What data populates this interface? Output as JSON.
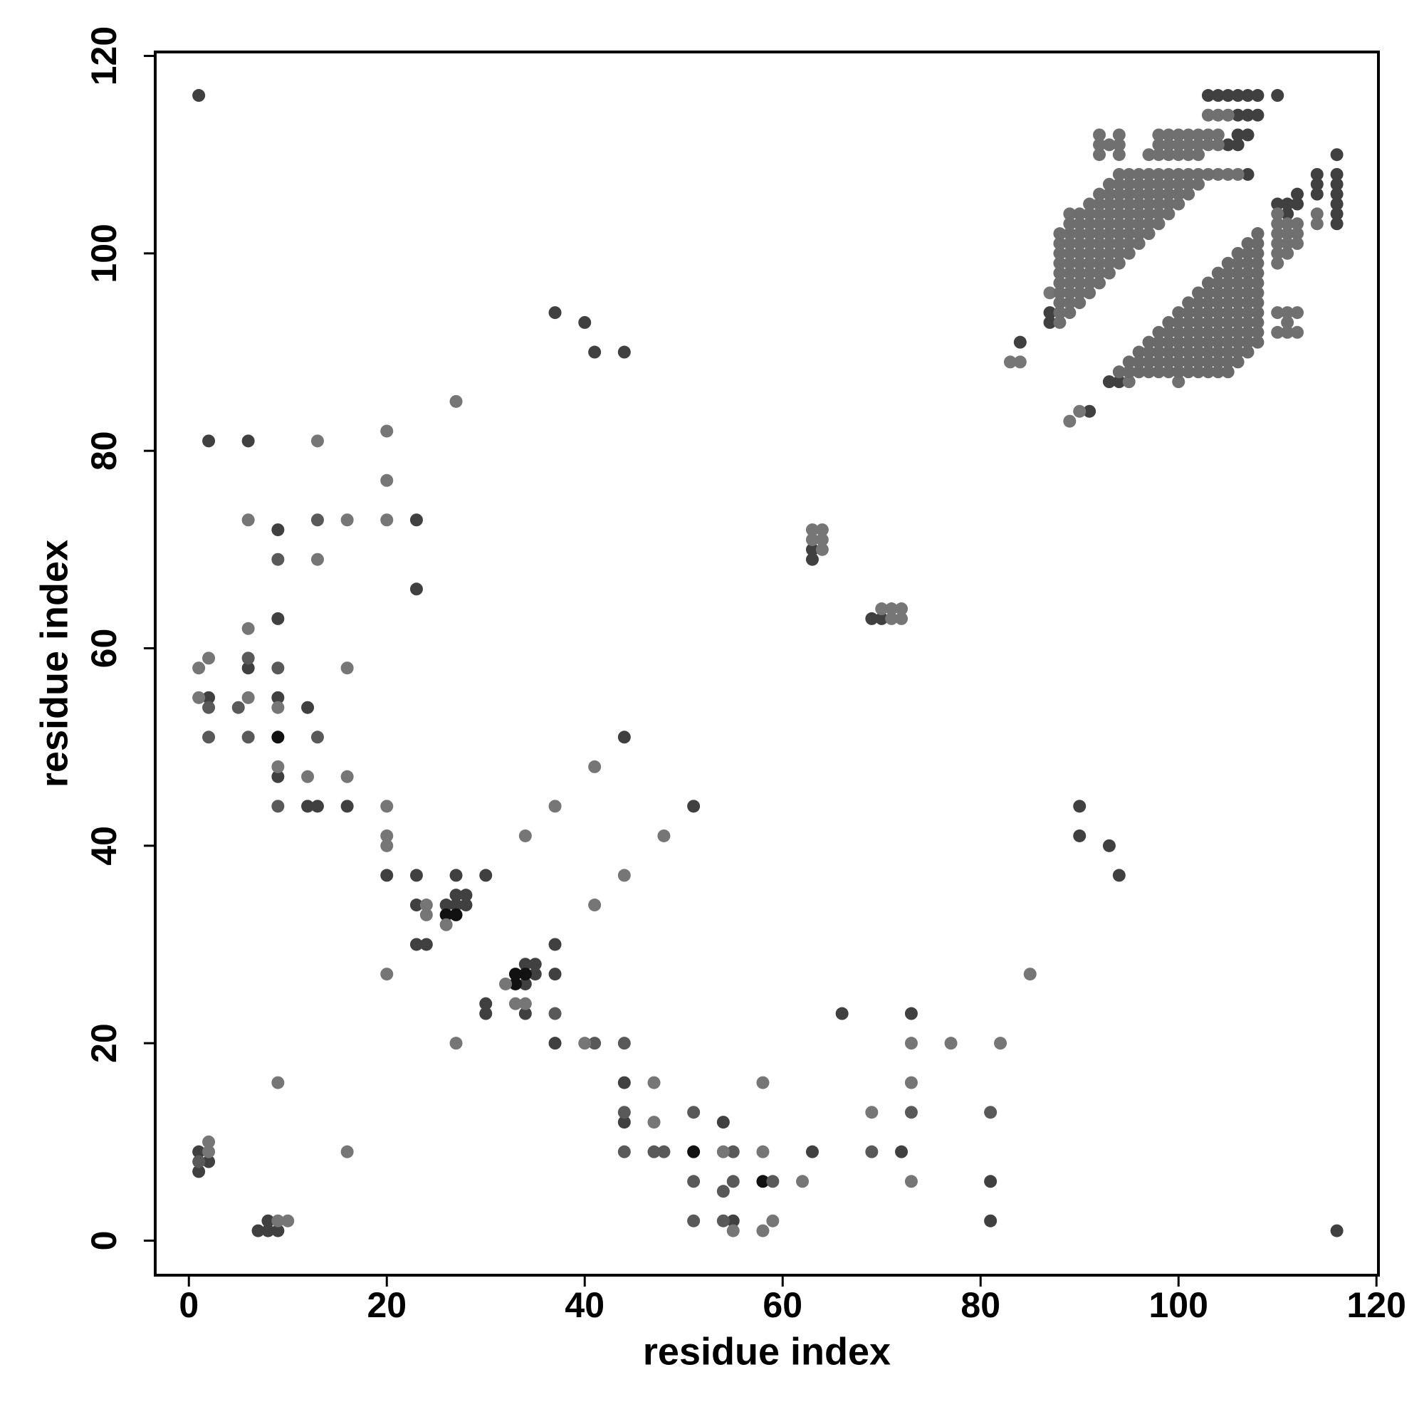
{
  "chart_data": {
    "type": "scatter",
    "xlabel": "residue index",
    "ylabel": "residue index",
    "xlim": [
      -3.4,
      120.2
    ],
    "ylim": [
      -3.5,
      120.4
    ],
    "xticks": [
      0,
      20,
      40,
      60,
      80,
      100,
      120
    ],
    "yticks": [
      0,
      20,
      40,
      60,
      80,
      100,
      120
    ],
    "grid": false,
    "series": [
      {
        "color": "#404040",
        "x": [
          1,
          2,
          6,
          23,
          9,
          23,
          9,
          6,
          2,
          9,
          12,
          9,
          12,
          13,
          16,
          20,
          23,
          23,
          26,
          27,
          27,
          28,
          28,
          27,
          30,
          23,
          24,
          30,
          30,
          34,
          34,
          35,
          35,
          34,
          37,
          37,
          37,
          37,
          40,
          41,
          44,
          44,
          51,
          44,
          44,
          54,
          63,
          55,
          66,
          72,
          73,
          81,
          81,
          1,
          1,
          2,
          7,
          8,
          8,
          9,
          116,
          63,
          63,
          69,
          70,
          90,
          90,
          93,
          94,
          84,
          91,
          87,
          87,
          93,
          94,
          110,
          103,
          104,
          105,
          106,
          107,
          108,
          106,
          107,
          108,
          105,
          106,
          106,
          107,
          107,
          114,
          114,
          114,
          116,
          116,
          116,
          116,
          116,
          116,
          116,
          112,
          111,
          112,
          110,
          111,
          108
        ],
        "values": [
          116,
          81,
          81,
          73,
          72,
          66,
          63,
          58,
          55,
          55,
          54,
          47,
          44,
          44,
          44,
          37,
          37,
          34,
          34,
          34,
          35,
          35,
          34,
          37,
          37,
          30,
          30,
          24,
          23,
          26,
          28,
          28,
          27,
          23,
          30,
          27,
          20,
          94,
          93,
          90,
          90,
          51,
          44,
          16,
          12,
          12,
          9,
          2,
          23,
          9,
          23,
          6,
          2,
          9,
          7,
          8,
          1,
          1,
          2,
          1,
          1,
          70,
          69,
          63,
          63,
          44,
          41,
          40,
          37,
          91,
          84,
          93,
          94,
          87,
          87,
          116,
          116,
          116,
          116,
          116,
          116,
          116,
          114,
          114,
          114,
          111,
          111,
          112,
          112,
          108,
          108,
          107,
          106,
          110,
          108,
          107,
          106,
          105,
          104,
          103,
          106,
          105,
          105,
          105,
          104,
          102
        ]
      },
      {
        "color": "#111111",
        "x": [
          9,
          26,
          27,
          33,
          33,
          34,
          51,
          58
        ],
        "values": [
          51,
          33,
          33,
          27,
          26,
          27,
          9,
          6
        ]
      },
      {
        "color": "#595959",
        "x": [
          13,
          6,
          9,
          2,
          5,
          2,
          6,
          13,
          9,
          37,
          41,
          44,
          44,
          44,
          47,
          48,
          51,
          55,
          51,
          54,
          55,
          59,
          51,
          54,
          69,
          73,
          81,
          1,
          9
        ],
        "values": [
          73,
          59,
          58,
          54,
          54,
          51,
          51,
          51,
          44,
          23,
          20,
          20,
          13,
          9,
          9,
          9,
          13,
          9,
          6,
          5,
          6,
          6,
          2,
          2,
          9,
          13,
          13,
          8,
          69
        ]
      },
      {
        "color": "#767676",
        "x": [
          13,
          20,
          27,
          20,
          6,
          16,
          20,
          13,
          6,
          2,
          1,
          16,
          1,
          6,
          9,
          9,
          12,
          16,
          20,
          20,
          20,
          24,
          24,
          26,
          20,
          32,
          33,
          34,
          37,
          34,
          41,
          48,
          44,
          41,
          27,
          40,
          47,
          47,
          54,
          58,
          62,
          55,
          58,
          59,
          58,
          69,
          73,
          73,
          73,
          77,
          82,
          85,
          2,
          2,
          9,
          16,
          9,
          10,
          63,
          64,
          63,
          64,
          64,
          70,
          71,
          72,
          71,
          72,
          83,
          84,
          89,
          90,
          87
        ],
        "values": [
          81,
          82,
          85,
          77,
          73,
          73,
          73,
          69,
          62,
          59,
          58,
          58,
          55,
          55,
          54,
          48,
          47,
          47,
          44,
          41,
          40,
          34,
          33,
          32,
          27,
          26,
          24,
          24,
          44,
          41,
          48,
          41,
          37,
          34,
          20,
          20,
          16,
          12,
          9,
          9,
          6,
          1,
          1,
          2,
          16,
          13,
          20,
          16,
          6,
          20,
          20,
          27,
          10,
          9,
          16,
          9,
          2,
          2,
          72,
          72,
          71,
          71,
          70,
          64,
          64,
          64,
          63,
          63,
          89,
          89,
          83,
          84,
          96
        ]
      },
      {
        "color": "#707070",
        "x": [
          103,
          104,
          105,
          98,
          99,
          100,
          101,
          102,
          103,
          104,
          98,
          99,
          100,
          101,
          102,
          103,
          104,
          97,
          98,
          99,
          100,
          101,
          102,
          92,
          94,
          92,
          93,
          94,
          92,
          94,
          104,
          105,
          106,
          114,
          114,
          110,
          110,
          110,
          110,
          110,
          110,
          111,
          111,
          111,
          111,
          112,
          112,
          112,
          110,
          111,
          112,
          110,
          111,
          112,
          111,
          104,
          100,
          95,
          89
        ],
        "values": [
          114,
          114,
          114,
          112,
          112,
          112,
          112,
          112,
          112,
          112,
          111,
          111,
          111,
          111,
          111,
          111,
          111,
          110,
          110,
          110,
          110,
          110,
          110,
          112,
          112,
          111,
          111,
          111,
          110,
          110,
          108,
          108,
          108,
          104,
          103,
          104,
          103,
          102,
          101,
          100,
          99,
          103,
          102,
          101,
          100,
          103,
          102,
          101,
          94,
          94,
          94,
          92,
          92,
          92,
          93,
          89,
          87,
          87,
          104
        ]
      },
      {
        "color": "#6e6e6e",
        "x": [
          88,
          88,
          88,
          88,
          88,
          88,
          88,
          88,
          88,
          88
        ],
        "values": [
          93,
          94,
          95,
          96,
          97,
          98,
          99,
          100,
          101,
          102
        ]
      },
      {
        "color": "#6e6e6e",
        "x": [
          89,
          89,
          89,
          89,
          89,
          89,
          89,
          89,
          89,
          89
        ],
        "values": [
          94,
          95,
          96,
          97,
          98,
          99,
          100,
          101,
          102,
          103
        ]
      },
      {
        "color": "#6e6e6e",
        "x": [
          90,
          90,
          90,
          90,
          90,
          90,
          90,
          90,
          90,
          90
        ],
        "values": [
          95,
          96,
          97,
          98,
          99,
          100,
          101,
          102,
          103,
          104
        ]
      },
      {
        "color": "#6e6e6e",
        "x": [
          91,
          91,
          91,
          91,
          91,
          91,
          91,
          91,
          91,
          91
        ],
        "values": [
          96,
          97,
          98,
          99,
          100,
          101,
          102,
          103,
          104,
          105
        ]
      },
      {
        "color": "#6e6e6e",
        "x": [
          92,
          92,
          92,
          92,
          92,
          92,
          92,
          92,
          92,
          92
        ],
        "values": [
          97,
          98,
          99,
          100,
          101,
          102,
          103,
          104,
          105,
          106
        ]
      },
      {
        "color": "#6e6e6e",
        "x": [
          93,
          93,
          93,
          93,
          93,
          93,
          93,
          93,
          93,
          93
        ],
        "values": [
          98,
          99,
          100,
          101,
          102,
          103,
          104,
          105,
          106,
          107
        ]
      },
      {
        "color": "#6e6e6e",
        "x": [
          94,
          94,
          94,
          94,
          94,
          94,
          94,
          94,
          94,
          94
        ],
        "values": [
          99,
          100,
          101,
          102,
          103,
          104,
          105,
          106,
          107,
          108
        ]
      },
      {
        "color": "#6e6e6e",
        "x": [
          95,
          95,
          95,
          95,
          95,
          95,
          95,
          95,
          95
        ],
        "values": [
          100,
          101,
          102,
          103,
          104,
          105,
          106,
          107,
          108
        ]
      },
      {
        "color": "#6e6e6e",
        "x": [
          96,
          96,
          96,
          96,
          96,
          96,
          96,
          96
        ],
        "values": [
          101,
          102,
          103,
          104,
          105,
          106,
          107,
          108
        ]
      },
      {
        "color": "#6e6e6e",
        "x": [
          97,
          97,
          97,
          97,
          97,
          97,
          97
        ],
        "values": [
          102,
          103,
          104,
          105,
          106,
          107,
          108
        ]
      },
      {
        "color": "#6e6e6e",
        "x": [
          98,
          98,
          98,
          98,
          98,
          98
        ],
        "values": [
          103,
          104,
          105,
          106,
          107,
          108
        ]
      },
      {
        "color": "#6e6e6e",
        "x": [
          99,
          99,
          99,
          99,
          99
        ],
        "values": [
          104,
          105,
          106,
          107,
          108
        ]
      },
      {
        "color": "#6e6e6e",
        "x": [
          100,
          100,
          100,
          100
        ],
        "values": [
          105,
          106,
          107,
          108
        ]
      },
      {
        "color": "#6e6e6e",
        "x": [
          101,
          101,
          101
        ],
        "values": [
          106,
          107,
          108
        ]
      },
      {
        "color": "#6e6e6e",
        "x": [
          102,
          102
        ],
        "values": [
          107,
          108
        ]
      },
      {
        "color": "#6e6e6e",
        "x": [
          103
        ],
        "values": [
          108
        ]
      },
      {
        "color": "#6a6a6a",
        "x": [
          94
        ],
        "values": [
          88
        ]
      },
      {
        "color": "#6a6a6a",
        "x": [
          95,
          95
        ],
        "values": [
          88,
          89
        ]
      },
      {
        "color": "#6a6a6a",
        "x": [
          96,
          96,
          96
        ],
        "values": [
          88,
          89,
          90
        ]
      },
      {
        "color": "#6a6a6a",
        "x": [
          97,
          97,
          97,
          97
        ],
        "values": [
          88,
          89,
          90,
          91
        ]
      },
      {
        "color": "#6a6a6a",
        "x": [
          98,
          98,
          98,
          98,
          98
        ],
        "values": [
          88,
          89,
          90,
          91,
          92
        ]
      },
      {
        "color": "#6a6a6a",
        "x": [
          99,
          99,
          99,
          99,
          99,
          99
        ],
        "values": [
          88,
          89,
          90,
          91,
          92,
          93
        ]
      },
      {
        "color": "#6a6a6a",
        "x": [
          100,
          100,
          100,
          100,
          100,
          100,
          100
        ],
        "values": [
          88,
          89,
          90,
          91,
          92,
          93,
          94
        ]
      },
      {
        "color": "#6a6a6a",
        "x": [
          101,
          101,
          101,
          101,
          101,
          101,
          101,
          101
        ],
        "values": [
          88,
          89,
          90,
          91,
          92,
          93,
          94,
          95
        ]
      },
      {
        "color": "#6a6a6a",
        "x": [
          102,
          102,
          102,
          102,
          102,
          102,
          102,
          102,
          102
        ],
        "values": [
          88,
          89,
          90,
          91,
          92,
          93,
          94,
          95,
          96
        ]
      },
      {
        "color": "#6a6a6a",
        "x": [
          103,
          103,
          103,
          103,
          103,
          103,
          103,
          103,
          103,
          103
        ],
        "values": [
          88,
          89,
          90,
          91,
          92,
          93,
          94,
          95,
          96,
          97
        ]
      },
      {
        "color": "#6a6a6a",
        "x": [
          104,
          104,
          104,
          104,
          104,
          104,
          104,
          104,
          104,
          104,
          104
        ],
        "values": [
          88,
          89,
          90,
          91,
          92,
          93,
          94,
          95,
          96,
          97,
          98
        ]
      },
      {
        "color": "#6a6a6a",
        "x": [
          105,
          105,
          105,
          105,
          105,
          105,
          105,
          105,
          105,
          105,
          105,
          105
        ],
        "values": [
          88,
          89,
          90,
          91,
          92,
          93,
          94,
          95,
          96,
          97,
          98,
          99
        ]
      },
      {
        "color": "#6a6a6a",
        "x": [
          106,
          106,
          106,
          106,
          106,
          106,
          106,
          106,
          106,
          106,
          106,
          106
        ],
        "values": [
          89,
          90,
          91,
          92,
          93,
          94,
          95,
          96,
          97,
          98,
          99,
          100
        ]
      },
      {
        "color": "#6a6a6a",
        "x": [
          107,
          107,
          107,
          107,
          107,
          107,
          107,
          107,
          107,
          107,
          107,
          107
        ],
        "values": [
          90,
          91,
          92,
          93,
          94,
          95,
          96,
          97,
          98,
          99,
          100,
          101
        ]
      },
      {
        "color": "#6a6a6a",
        "x": [
          108,
          108,
          108,
          108,
          108,
          108,
          108,
          108,
          108,
          108,
          108,
          108
        ],
        "values": [
          91,
          92,
          93,
          94,
          95,
          96,
          97,
          98,
          99,
          100,
          101,
          102
        ]
      }
    ]
  }
}
